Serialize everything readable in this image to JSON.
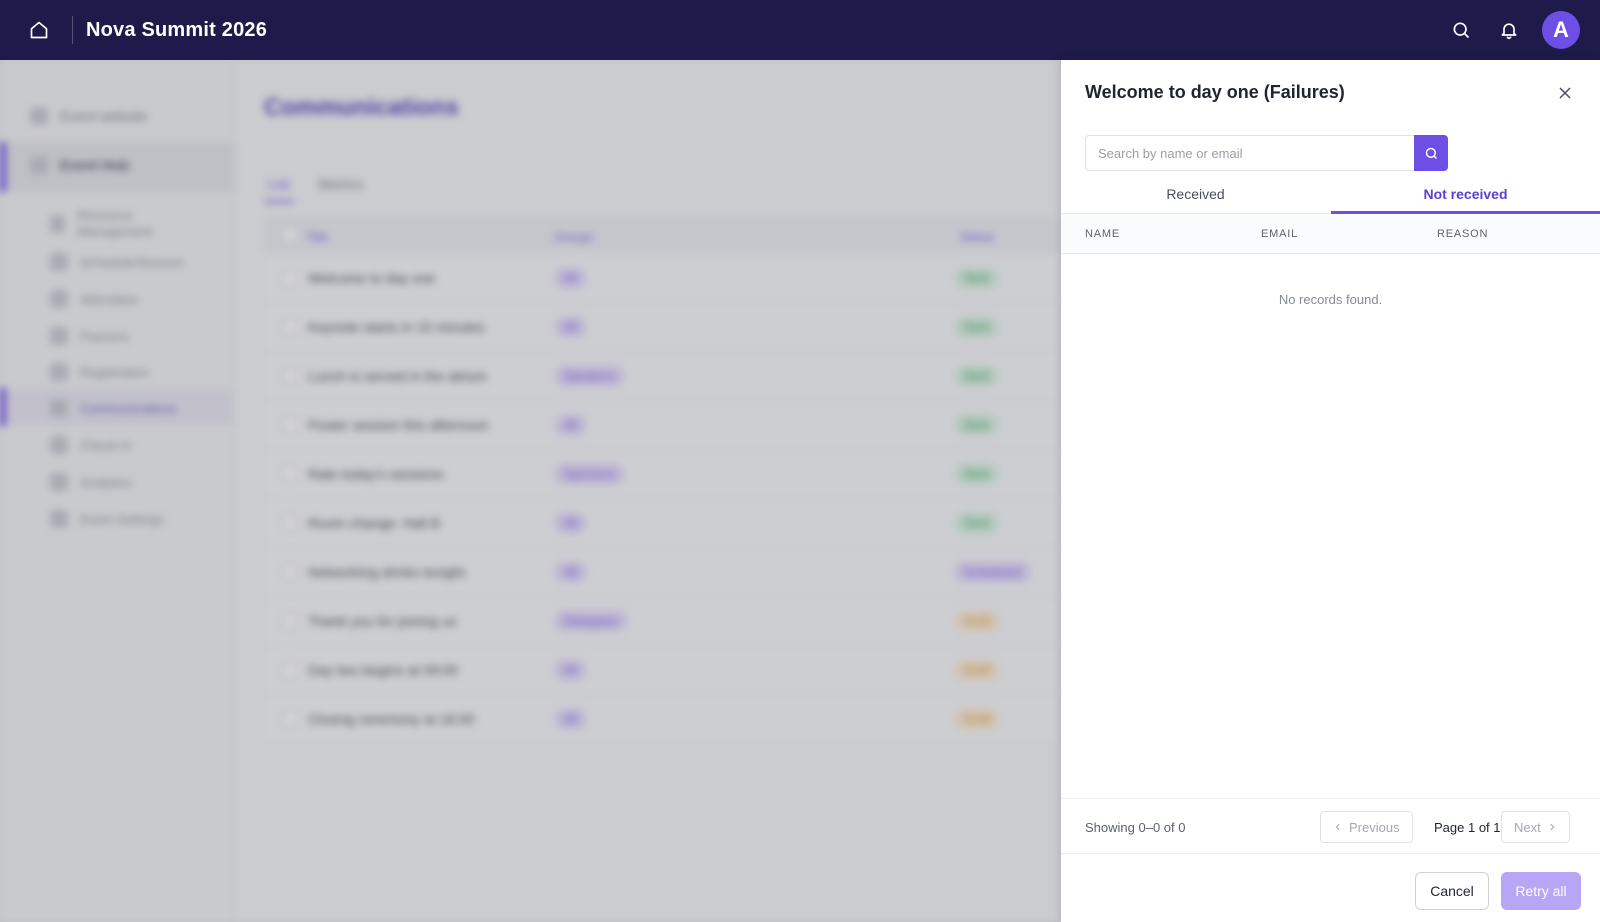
{
  "header": {
    "app_title": "Nova Summit 2026",
    "avatar_initial": "A"
  },
  "background": {
    "sidebar": [
      {
        "label": "Event website"
      },
      {
        "label": "Event Hub"
      },
      {
        "label": "Resource Management"
      },
      {
        "label": "Schedule/Session"
      },
      {
        "label": "Attendees"
      },
      {
        "label": "Partners"
      },
      {
        "label": "Registration"
      },
      {
        "label": "Communications"
      },
      {
        "label": "Check-in"
      },
      {
        "label": "Analytics"
      },
      {
        "label": "Event Settings"
      }
    ],
    "page_title": "Communications",
    "tabs": [
      "List",
      "Metrics"
    ],
    "columns": [
      "Title",
      "Groups",
      "Status"
    ],
    "rows": [
      {
        "title": "Welcome to day one",
        "group": "All",
        "status": "Sent",
        "status_kind": "sent"
      },
      {
        "title": "Keynote starts in 15 minutes",
        "group": "All",
        "status": "Sent",
        "status_kind": "sent"
      },
      {
        "title": "Lunch is served in the atrium",
        "group": "Speakers",
        "status": "Sent",
        "status_kind": "sent"
      },
      {
        "title": "Poster session this afternoon",
        "group": "All",
        "status": "Sent",
        "status_kind": "sent"
      },
      {
        "title": "Rate today's sessions",
        "group": "Sponsors",
        "status": "Sent",
        "status_kind": "sent"
      },
      {
        "title": "Room change: Hall B",
        "group": "All",
        "status": "Sent",
        "status_kind": "sent"
      },
      {
        "title": "Networking drinks tonight",
        "group": "All",
        "status": "Scheduled",
        "status_kind": "sched"
      },
      {
        "title": "Thank you for joining us",
        "group": "Delegates",
        "status": "Draft",
        "status_kind": "draft"
      },
      {
        "title": "Day two begins at 09:00",
        "group": "All",
        "status": "Draft",
        "status_kind": "draft"
      },
      {
        "title": "Closing ceremony at 16:00",
        "group": "All",
        "status": "Draft",
        "status_kind": "draft"
      }
    ]
  },
  "panel": {
    "title": "Welcome to day one (Failures)",
    "search_placeholder": "Search by name or email",
    "search_value": "",
    "tabs": {
      "received": "Received",
      "not_received": "Not received",
      "active": "not_received"
    },
    "columns": {
      "name": "NAME",
      "email": "EMAIL",
      "reason": "REASON"
    },
    "empty_text": "No records found.",
    "pagination": {
      "showing": "Showing 0–0 of 0",
      "previous": "Previous",
      "page_label": "Page 1 of 1",
      "next": "Next"
    },
    "actions": {
      "cancel": "Cancel",
      "retry_all": "Retry all"
    }
  },
  "colors": {
    "topbar": "#1e1b4b",
    "accent": "#6d4fe6",
    "retry_disabled": "#b7a6f5"
  }
}
